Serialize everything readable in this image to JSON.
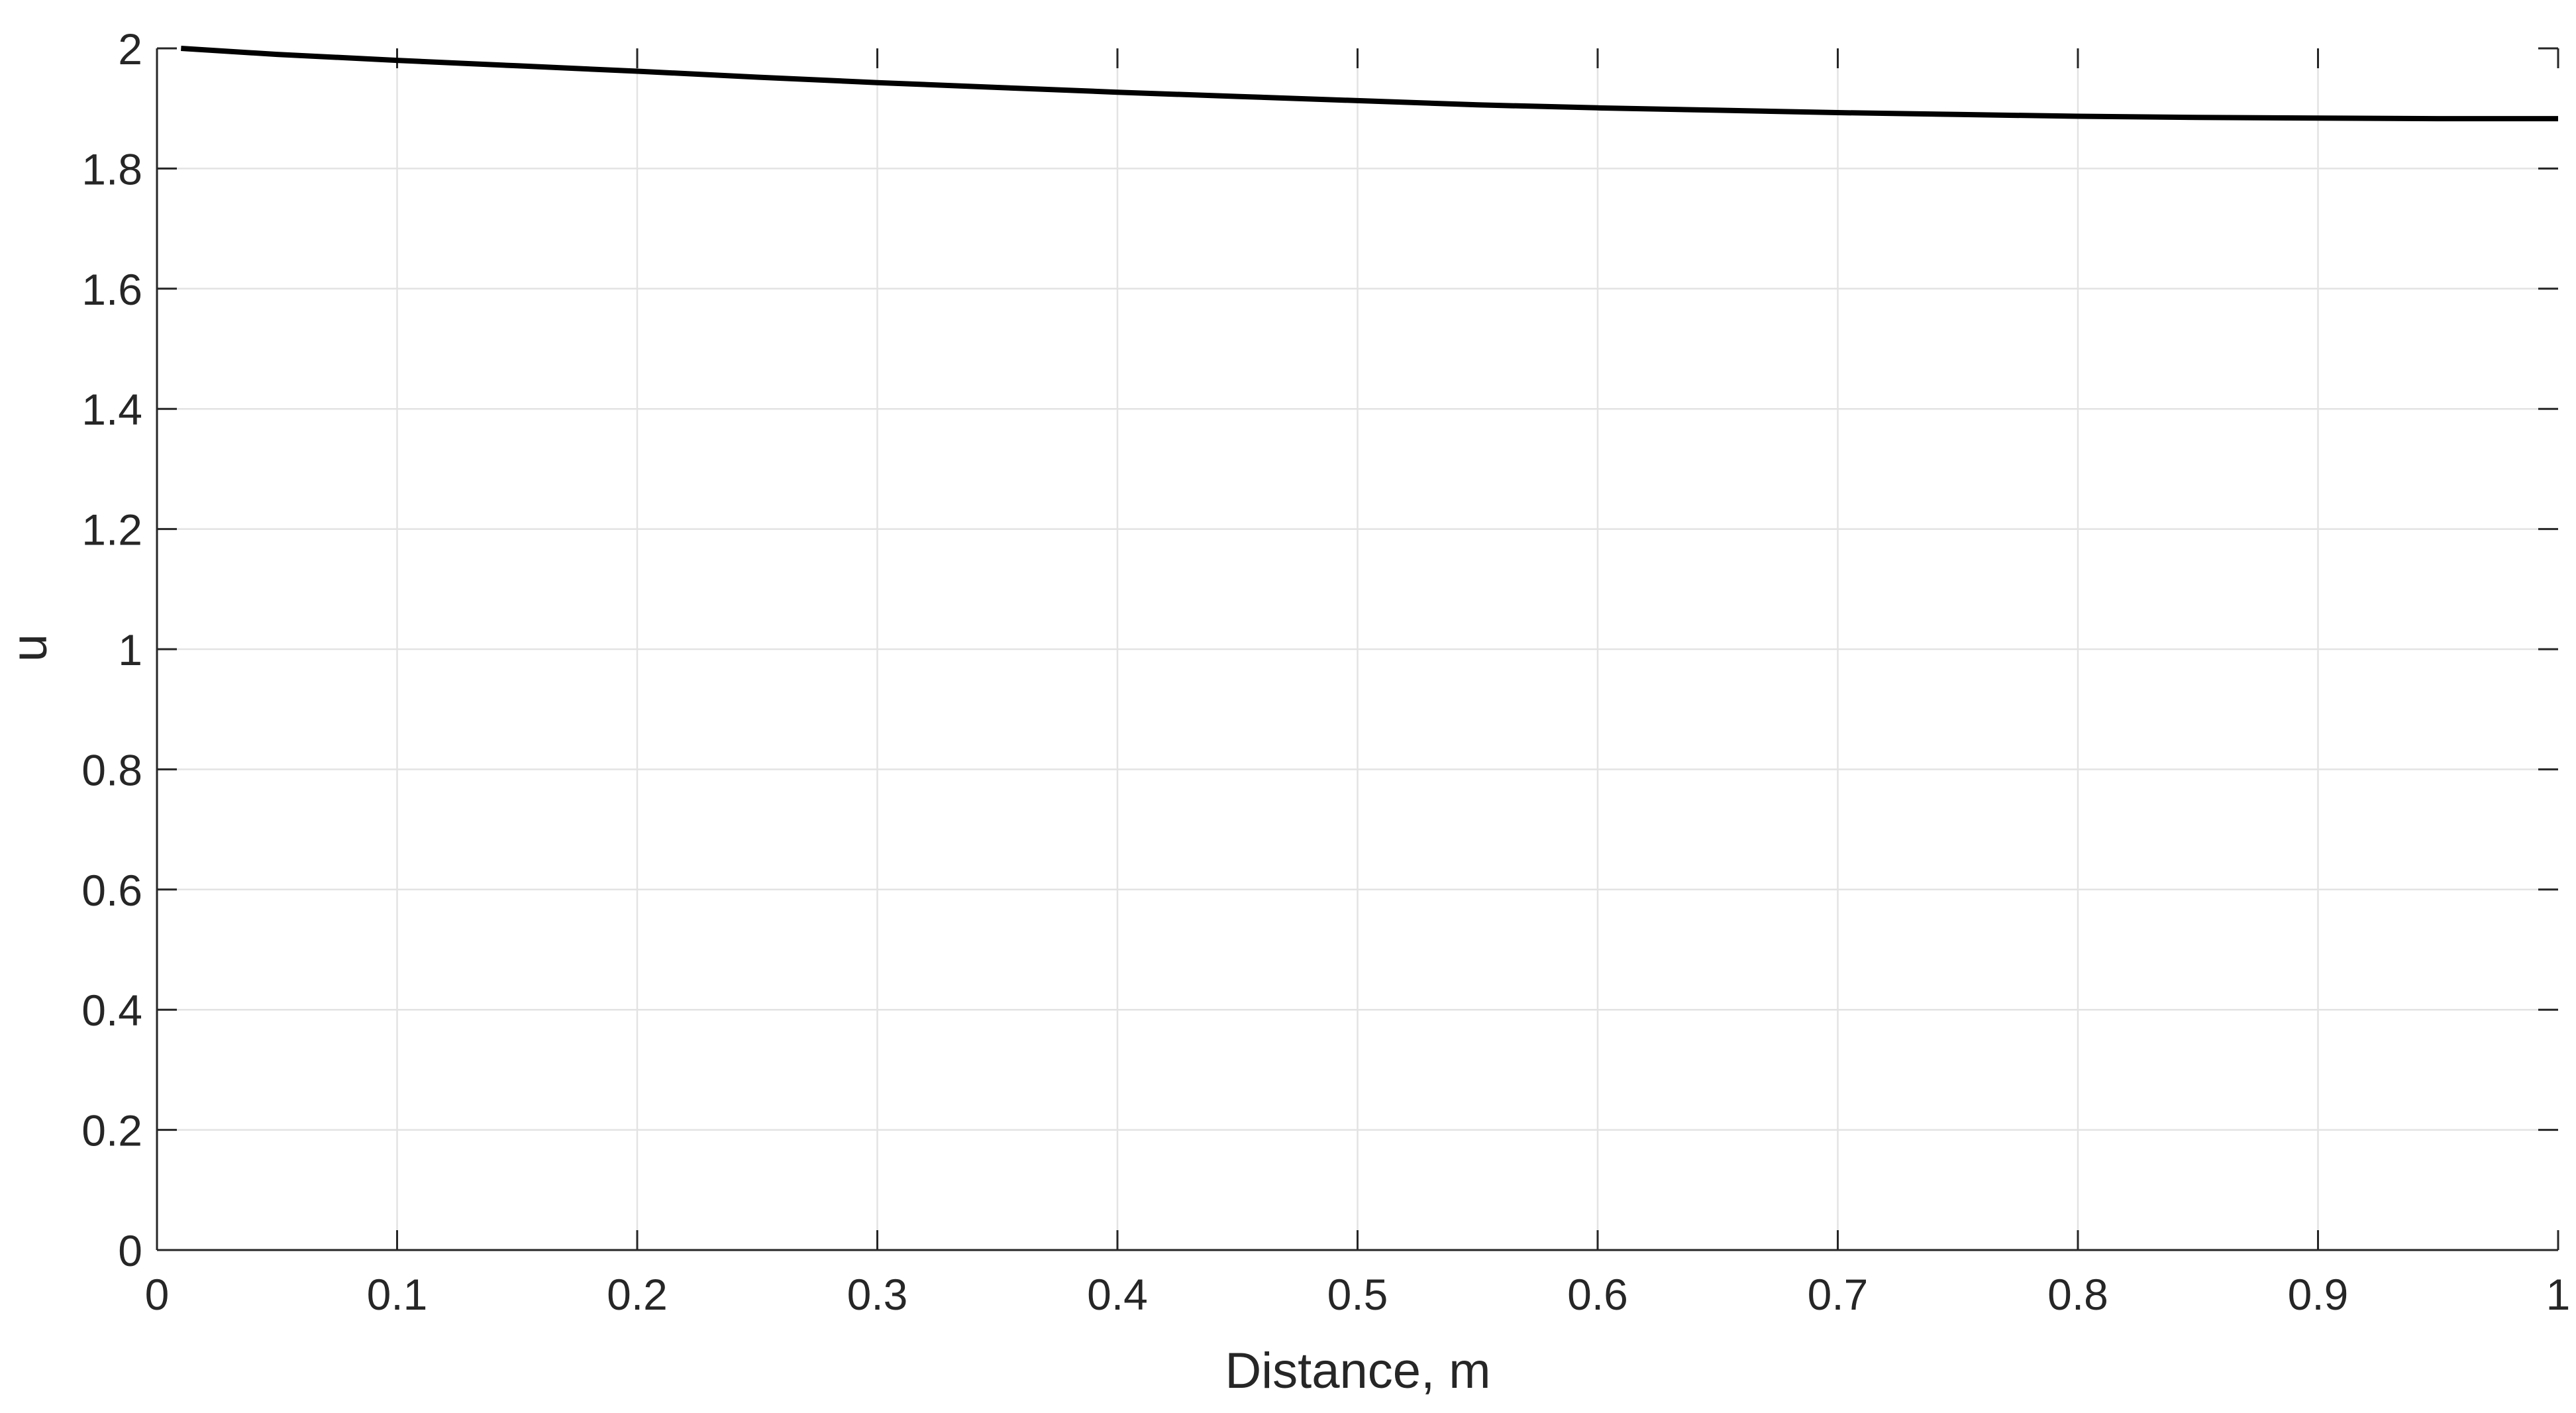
{
  "chart_data": {
    "type": "line",
    "title": "",
    "xlabel": "Distance, m",
    "ylabel": "u",
    "xlim": [
      0,
      1
    ],
    "ylim": [
      0,
      2
    ],
    "grid": true,
    "legend": "none",
    "xticks": [
      0,
      0.1,
      0.2,
      0.3,
      0.4,
      0.5,
      0.6,
      0.7,
      0.8,
      0.9,
      1
    ],
    "xtick_labels": [
      "0",
      "0.1",
      "0.2",
      "0.3",
      "0.4",
      "0.5",
      "0.6",
      "0.7",
      "0.8",
      "0.9",
      "1"
    ],
    "yticks": [
      0,
      0.2,
      0.4,
      0.6,
      0.8,
      1,
      1.2,
      1.4,
      1.6,
      1.8,
      2
    ],
    "ytick_labels": [
      "0",
      "0.2",
      "0.4",
      "0.6",
      "0.8",
      "1",
      "1.2",
      "1.4",
      "1.6",
      "1.8",
      "2"
    ],
    "series": [
      {
        "color": "#000000",
        "x": [
          0.01,
          0.05,
          0.1,
          0.15,
          0.2,
          0.25,
          0.3,
          0.35,
          0.4,
          0.45,
          0.5,
          0.55,
          0.6,
          0.65,
          0.7,
          0.75,
          0.8,
          0.85,
          0.9,
          0.95,
          1.0
        ],
        "y": [
          2.0,
          1.99,
          1.98,
          1.971,
          1.962,
          1.952,
          1.943,
          1.935,
          1.927,
          1.92,
          1.913,
          1.906,
          1.901,
          1.897,
          1.893,
          1.89,
          1.887,
          1.885,
          1.884,
          1.883,
          1.883
        ]
      }
    ]
  }
}
